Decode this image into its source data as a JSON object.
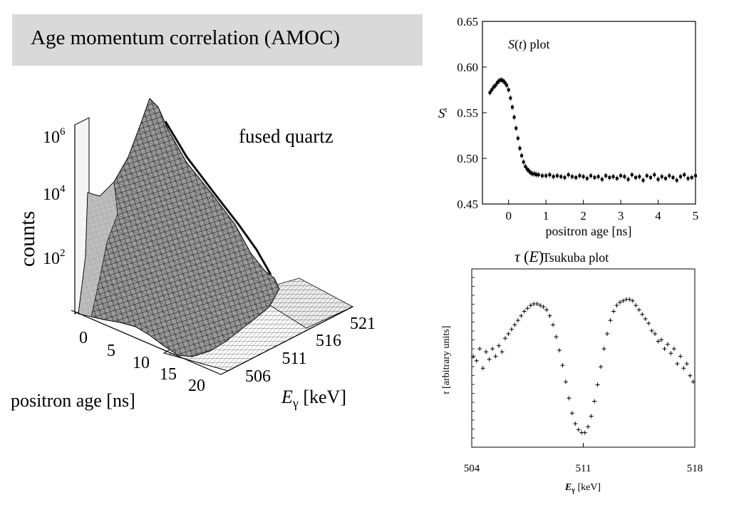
{
  "banner": {
    "title": "Age momentum correlation (AMOC)"
  },
  "chart_data": [
    {
      "type": "surface3d",
      "annotation": "fused quartz",
      "zlabel": "counts",
      "z_scale": "log",
      "z_ticks": [
        {
          "base": "10",
          "exp": "2"
        },
        {
          "base": "10",
          "exp": "4"
        },
        {
          "base": "10",
          "exp": "6"
        }
      ],
      "xlabel": "positron age  [ns]",
      "x_ticks": [
        "0",
        "5",
        "10",
        "15",
        "20"
      ],
      "ylabel_symbol": "E",
      "ylabel_sub": "γ",
      "ylabel_unit": " [keV]",
      "y_ticks": [
        "506",
        "511",
        "516",
        "521"
      ],
      "peak": {
        "age_ns": 0,
        "energy_keV": 511,
        "counts": 1000000
      }
    },
    {
      "type": "scatter",
      "title_func": "S",
      "title_arg": "t",
      "title_suffix": " plot",
      "ylabel": "S",
      "ylabel_sup": "t",
      "xlabel": "positron age  [ns]",
      "xlim": [
        -0.7,
        5
      ],
      "ylim": [
        0.45,
        0.65
      ],
      "x_ticks": [
        0,
        1,
        2,
        3,
        4,
        5
      ],
      "y_ticks": [
        0.45,
        0.5,
        0.55,
        0.6,
        0.65
      ],
      "y_tick_labels": [
        "0.45",
        "0.50",
        "0.55",
        "0.60",
        "0.65"
      ],
      "series": [
        {
          "x": [
            -0.5,
            -0.45,
            -0.4,
            -0.35,
            -0.3,
            -0.25,
            -0.2,
            -0.15,
            -0.1,
            -0.05,
            0.0,
            0.05,
            0.1,
            0.15,
            0.2,
            0.25,
            0.3,
            0.35,
            0.4,
            0.45,
            0.5,
            0.55,
            0.6,
            0.65,
            0.7,
            0.75,
            0.8,
            0.9,
            1.0,
            1.1,
            1.2,
            1.3,
            1.4,
            1.5,
            1.6,
            1.7,
            1.8,
            1.9,
            2.0,
            2.1,
            2.2,
            2.3,
            2.4,
            2.5,
            2.6,
            2.7,
            2.8,
            2.9,
            3.0,
            3.1,
            3.2,
            3.3,
            3.4,
            3.5,
            3.6,
            3.7,
            3.8,
            3.9,
            4.0,
            4.1,
            4.2,
            4.3,
            4.4,
            4.5,
            4.6,
            4.7,
            4.8,
            4.9,
            5.0
          ],
          "y": [
            0.572,
            0.575,
            0.578,
            0.58,
            0.583,
            0.585,
            0.586,
            0.585,
            0.583,
            0.58,
            0.575,
            0.566,
            0.556,
            0.545,
            0.533,
            0.522,
            0.511,
            0.503,
            0.496,
            0.491,
            0.488,
            0.486,
            0.484,
            0.483,
            0.483,
            0.482,
            0.482,
            0.481,
            0.481,
            0.482,
            0.48,
            0.481,
            0.48,
            0.479,
            0.482,
            0.48,
            0.479,
            0.481,
            0.48,
            0.478,
            0.481,
            0.479,
            0.48,
            0.477,
            0.481,
            0.479,
            0.48,
            0.478,
            0.481,
            0.48,
            0.477,
            0.482,
            0.479,
            0.48,
            0.476,
            0.481,
            0.479,
            0.482,
            0.477,
            0.48,
            0.478,
            0.481,
            0.479,
            0.476,
            0.48,
            0.482,
            0.478,
            0.479,
            0.481
          ]
        }
      ]
    },
    {
      "type": "scatter",
      "title_symbol": "τ",
      "title_arg": "E",
      "title_text": "Tsukuba plot",
      "ylabel": "[arbitrary units]",
      "ylabel_symbol": "τ",
      "xlabel_symbol": "E",
      "xlabel_sub": "γ",
      "xlabel_unit": " [keV]",
      "xlim": [
        504,
        518
      ],
      "ylim": [
        0,
        1
      ],
      "x_ticks": [
        504,
        511,
        518
      ],
      "series": [
        {
          "x": [
            504.1,
            504.3,
            504.5,
            504.7,
            504.9,
            505.1,
            505.3,
            505.5,
            505.7,
            505.9,
            506.1,
            506.3,
            506.5,
            506.7,
            506.9,
            507.1,
            507.3,
            507.5,
            507.7,
            507.9,
            508.1,
            508.3,
            508.5,
            508.7,
            508.9,
            509.1,
            509.3,
            509.5,
            509.7,
            509.9,
            510.1,
            510.3,
            510.5,
            510.7,
            510.9,
            511.1,
            511.3,
            511.5,
            511.7,
            511.9,
            512.1,
            512.3,
            512.5,
            512.7,
            512.9,
            513.1,
            513.3,
            513.5,
            513.7,
            513.9,
            514.1,
            514.3,
            514.5,
            514.7,
            514.9,
            515.1,
            515.3,
            515.5,
            515.7,
            515.9,
            516.1,
            516.3,
            516.5,
            516.7,
            516.9,
            517.1,
            517.3,
            517.5,
            517.7,
            517.9
          ],
          "y": [
            0.55,
            0.52,
            0.6,
            0.47,
            0.58,
            0.53,
            0.6,
            0.55,
            0.62,
            0.58,
            0.67,
            0.7,
            0.73,
            0.76,
            0.79,
            0.82,
            0.85,
            0.87,
            0.89,
            0.9,
            0.9,
            0.89,
            0.88,
            0.86,
            0.82,
            0.76,
            0.68,
            0.59,
            0.49,
            0.38,
            0.27,
            0.17,
            0.1,
            0.06,
            0.04,
            0.04,
            0.08,
            0.15,
            0.25,
            0.36,
            0.48,
            0.6,
            0.7,
            0.79,
            0.85,
            0.89,
            0.91,
            0.92,
            0.93,
            0.93,
            0.92,
            0.89,
            0.86,
            0.83,
            0.8,
            0.77,
            0.72,
            0.7,
            0.65,
            0.66,
            0.6,
            0.63,
            0.57,
            0.6,
            0.5,
            0.55,
            0.47,
            0.5,
            0.42,
            0.38
          ]
        }
      ]
    }
  ]
}
